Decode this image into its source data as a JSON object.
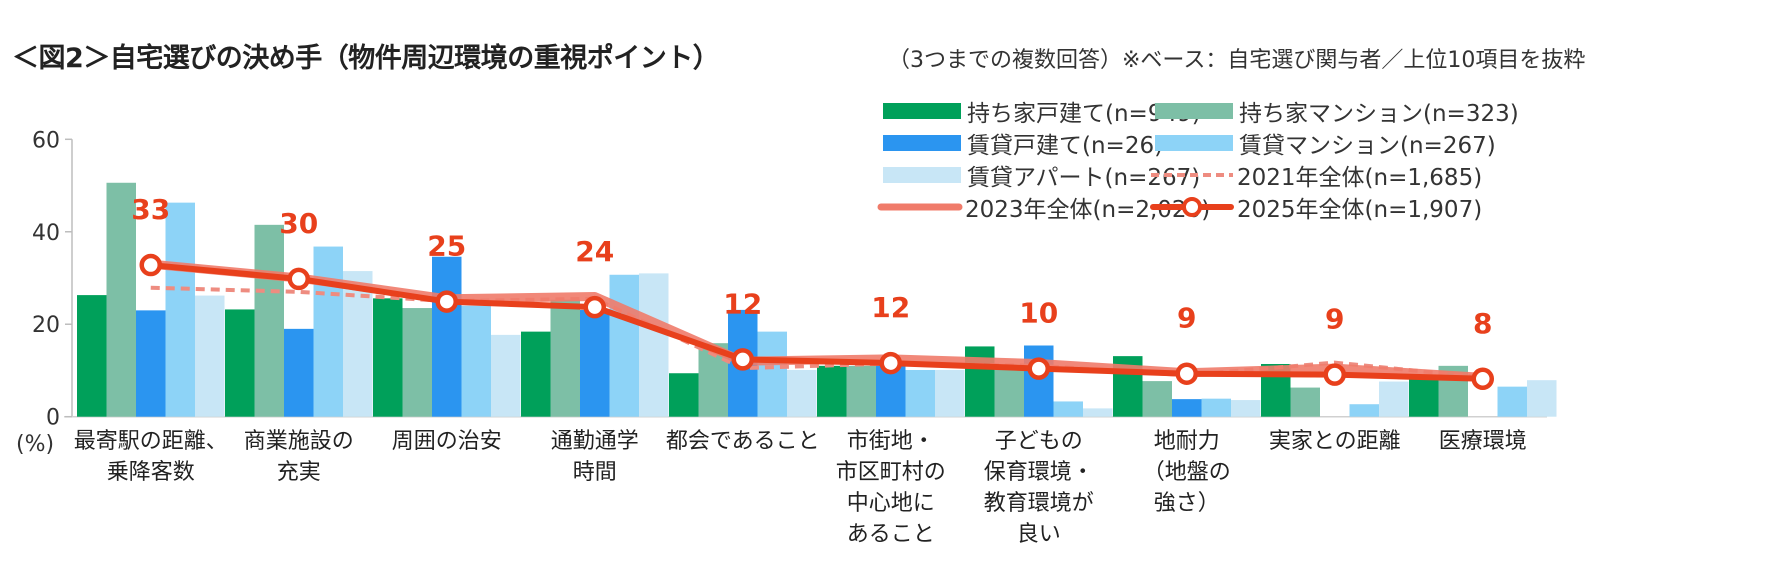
{
  "title": "＜図2＞自宅選びの決め手（物件周辺環境の重視ポイント）",
  "subtitle": "（3つまでの複数回答）※ベース：自宅選び関与者／上位10項目を抜粋",
  "chart_data": {
    "type": "bar",
    "title": "＜図2＞自宅選びの決め手（物件周辺環境の重視ポイント）",
    "subtitle": "（3つまでの複数回答）※ベース：自宅選び関与者／上位10項目を抜粋",
    "xlabel": "",
    "ylabel": "(%)",
    "ylim": [
      0,
      60
    ],
    "yticks": [
      0,
      20,
      40,
      60
    ],
    "grid": false,
    "legend_position": "top-right",
    "categories": [
      "最寄駅の距離、\n乗降客数",
      "商業施設の\n充実",
      "周囲の治安",
      "通勤通学\n時間",
      "都会であること",
      "市街地・\n市区町村の\n中心地に\nあること",
      "子どもの\n保育環境・\n教育環境が\n良い",
      "地耐力\n（地盤の\n強さ）",
      "実家との距離",
      "医療環境"
    ],
    "series": [
      {
        "name": "持ち家戸建て(n=949)",
        "kind": "bar",
        "color": "#00A05A",
        "values": [
          26.3,
          23.2,
          25.6,
          18.4,
          9.4,
          11.0,
          15.2,
          13.1,
          11.4,
          8.5
        ]
      },
      {
        "name": "持ち家マンション(n=323)",
        "kind": "bar",
        "color": "#7DBFA6",
        "values": [
          50.6,
          41.5,
          23.5,
          25.3,
          15.9,
          11.0,
          10.5,
          7.7,
          6.3,
          11.0
        ]
      },
      {
        "name": "賃貸戸建て(n=26)",
        "kind": "bar",
        "color": "#2B95F0",
        "values": [
          23.0,
          19.0,
          34.6,
          23.1,
          23.1,
          11.5,
          15.4,
          3.8,
          0.0,
          0.0
        ]
      },
      {
        "name": "賃貸マンション(n=267)",
        "kind": "bar",
        "color": "#8DD3F7",
        "values": [
          46.3,
          36.8,
          24.0,
          30.7,
          18.4,
          10.1,
          3.3,
          3.9,
          2.7,
          6.5
        ]
      },
      {
        "name": "賃貸アパート(n=267)",
        "kind": "bar",
        "color": "#C8E6F6",
        "values": [
          26.2,
          31.5,
          17.7,
          31.0,
          10.1,
          10.1,
          1.8,
          3.6,
          7.6,
          7.9
        ]
      },
      {
        "name": "2021年全体(n=1,685)",
        "kind": "dashed-line",
        "color": "#EE8C80",
        "values": [
          27.9,
          27.0,
          25.0,
          25.5,
          10.5,
          11.5,
          11.0,
          9.0,
          11.7,
          8.5
        ]
      },
      {
        "name": "2023年全体(n=2,020)",
        "kind": "line",
        "color": "#F07B6A",
        "values": [
          33.0,
          30.0,
          25.5,
          26.0,
          12.0,
          12.5,
          11.5,
          9.5,
          10.5,
          8.5
        ]
      },
      {
        "name": "2025年全体(n=1,907)",
        "kind": "line-marker",
        "color": "#E8401C",
        "values": [
          32.8,
          29.8,
          24.9,
          23.7,
          12.4,
          11.6,
          10.4,
          9.3,
          9.1,
          8.2
        ],
        "labels": [
          "33",
          "30",
          "25",
          "24",
          "12",
          "12",
          "10",
          "9",
          "9",
          "8"
        ]
      }
    ]
  },
  "legend": [
    {
      "label": "持ち家戸建て(n=949)"
    },
    {
      "label": "持ち家マンション(n=323)"
    },
    {
      "label": "賃貸戸建て(n=26)"
    },
    {
      "label": "賃貸マンション(n=267)"
    },
    {
      "label": "賃貸アパート(n=267)"
    },
    {
      "label": "2021年全体(n=1,685)"
    },
    {
      "label": "2023年全体(n=2,020)"
    },
    {
      "label": "2025年全体(n=1,907)"
    }
  ],
  "x_labels": [
    "最寄駅の距離、\n乗降客数",
    "商業施設の\n充実",
    "周囲の治安",
    "通勤通学\n時間",
    "都会であること",
    "市街地・\n市区町村の\n中心地に\nあること",
    "子どもの\n保育環境・\n教育環境が\n良い",
    "地耐力\n（地盤の\n強さ）",
    "実家との距離",
    "医療環境"
  ],
  "y_unit": "(%)",
  "y_ticks": [
    "0",
    "20",
    "40",
    "60"
  ]
}
